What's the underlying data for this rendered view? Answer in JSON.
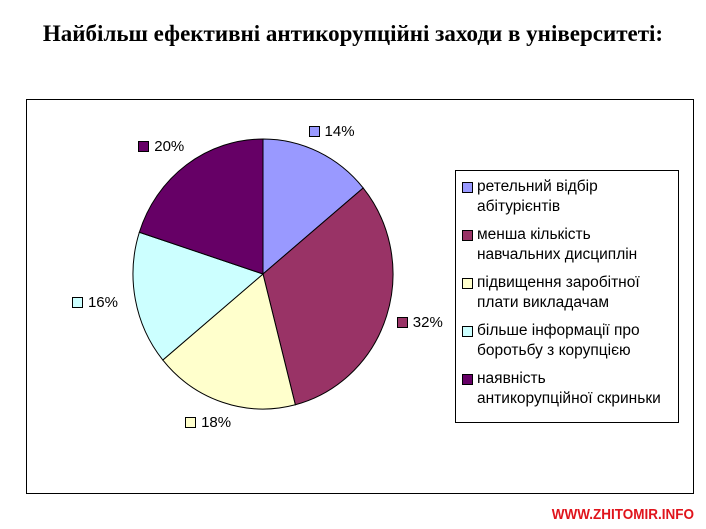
{
  "chart_data": {
    "type": "pie",
    "title": "Найбільш ефективні антикорупційні заходи в університеті:",
    "categories": [
      "ретельний відбір\nабітурієнтів",
      "менша кількість\nнавчальних дисциплін",
      "підвищення заробітної\nплати викладачам",
      "більше інформації про\nборотьбу з корупцією",
      "наявність\nантикорупційної скриньки"
    ],
    "values": [
      14,
      32,
      18,
      16,
      20
    ],
    "data_labels": [
      "14%",
      "32%",
      "18%",
      "16%",
      "20%"
    ],
    "colors": [
      "#9999FF",
      "#993366",
      "#FFFFCC",
      "#CCFFFF",
      "#660066"
    ],
    "start_angle": "top",
    "direction": "clockwise",
    "legend": "right"
  },
  "watermark": "WWW.ZHITOMIR.INFO"
}
